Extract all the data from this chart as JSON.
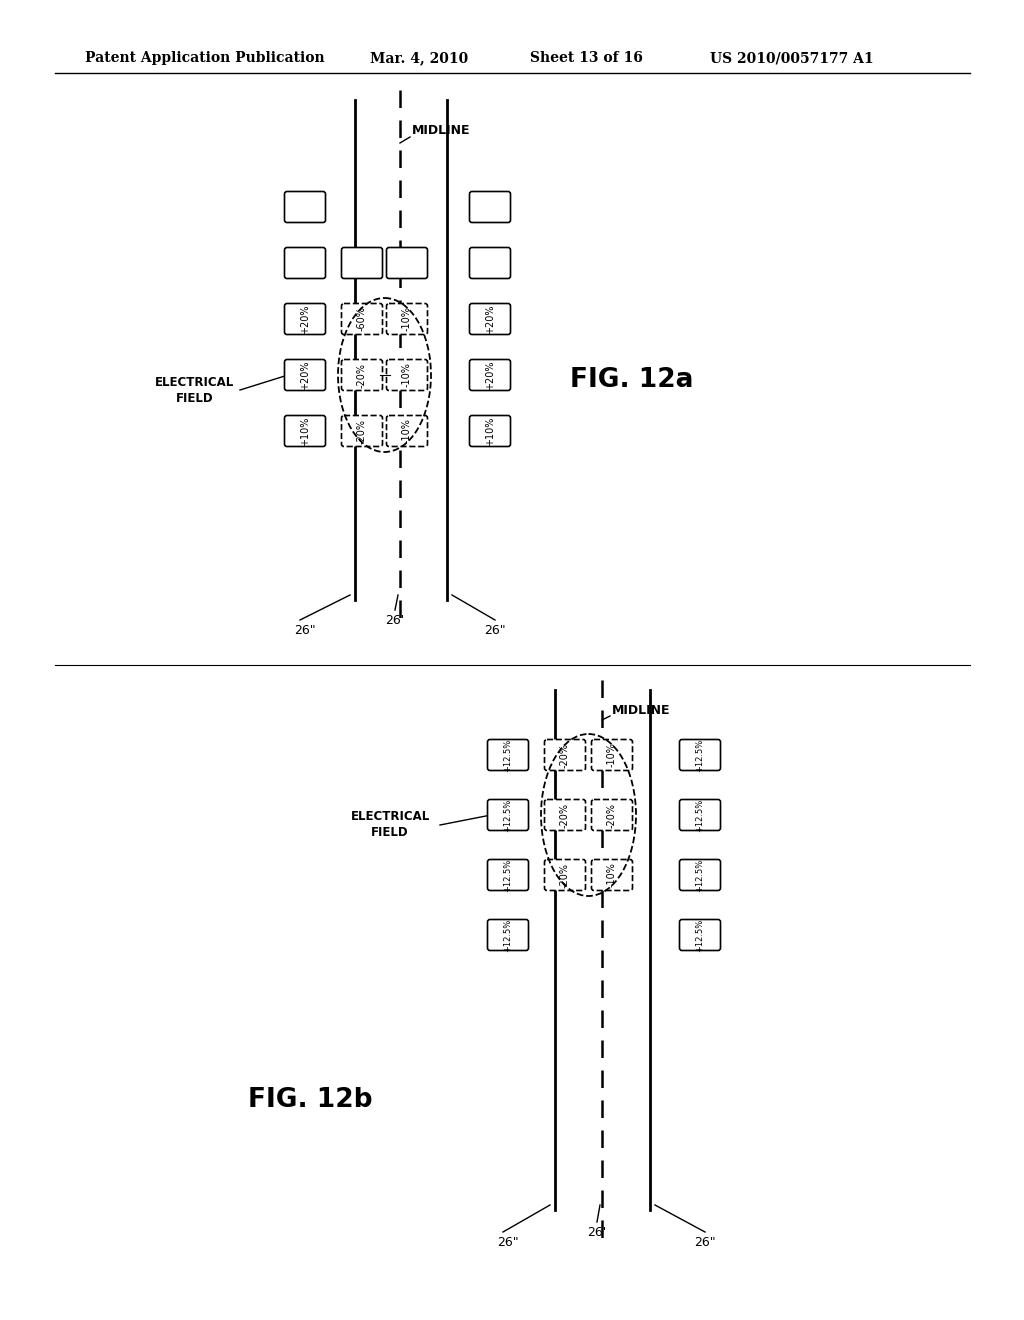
{
  "bg_color": "#ffffff",
  "header_text": "Patent Application Publication",
  "header_date": "Mar. 4, 2010",
  "header_sheet": "Sheet 13 of 16",
  "header_patent": "US 2010/0057177 A1",
  "fig_a_label": "FIG. 12a",
  "fig_b_label": "FIG. 12b"
}
